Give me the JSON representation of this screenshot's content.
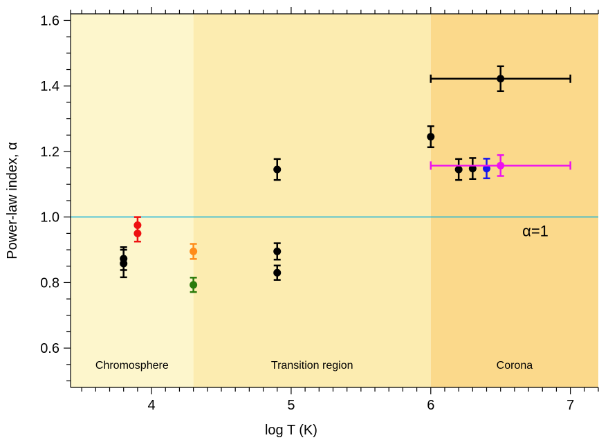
{
  "chart_data": {
    "type": "scatter",
    "title": "",
    "xlabel": "log T (K)",
    "ylabel": "Power-law index, α",
    "xlim": [
      3.42,
      7.2
    ],
    "ylim": [
      0.48,
      1.62
    ],
    "xticks": [
      4,
      5,
      6,
      7
    ],
    "xtick_labels": [
      "4",
      "5",
      "6",
      "7"
    ],
    "yticks": [
      0.6,
      0.8,
      1.0,
      1.2,
      1.4,
      1.6
    ],
    "ytick_labels": [
      "0.6",
      "0.8",
      "1.0",
      "1.2",
      "1.4",
      "1.6"
    ],
    "grid": false,
    "regions": [
      {
        "label": "Chromosphere",
        "x_start": 3.42,
        "x_end": 4.3,
        "color": "#fdf6cc"
      },
      {
        "label": "Transition region",
        "x_start": 4.3,
        "x_end": 6.0,
        "color": "#fcecb0"
      },
      {
        "label": "Corona",
        "x_start": 6.0,
        "x_end": 7.2,
        "color": "#fbd98b"
      }
    ],
    "reference_line": {
      "y": 1.0,
      "label": "α=1",
      "color": "#1fb5d6"
    },
    "points": [
      {
        "x": 3.8,
        "y": 0.873,
        "yerr": 0.035,
        "xerr": 0,
        "color": "#000000"
      },
      {
        "x": 3.8,
        "y": 0.858,
        "yerr": 0.042,
        "xerr": 0,
        "color": "#000000"
      },
      {
        "x": 3.9,
        "y": 0.975,
        "yerr": 0.025,
        "xerr": 0,
        "color": "#ee1111"
      },
      {
        "x": 3.9,
        "y": 0.95,
        "yerr": 0.025,
        "xerr": 0,
        "color": "#ee1111"
      },
      {
        "x": 4.3,
        "y": 0.895,
        "yerr": 0.023,
        "xerr": 0,
        "color": "#ff8c1a"
      },
      {
        "x": 4.3,
        "y": 0.793,
        "yerr": 0.022,
        "xerr": 0,
        "color": "#2a7a0a"
      },
      {
        "x": 4.9,
        "y": 1.145,
        "yerr": 0.032,
        "xerr": 0,
        "color": "#000000"
      },
      {
        "x": 4.9,
        "y": 0.895,
        "yerr": 0.025,
        "xerr": 0,
        "color": "#000000"
      },
      {
        "x": 4.9,
        "y": 0.83,
        "yerr": 0.022,
        "xerr": 0,
        "color": "#000000"
      },
      {
        "x": 6.0,
        "y": 1.245,
        "yerr": 0.032,
        "xerr": 0,
        "color": "#000000"
      },
      {
        "x": 6.2,
        "y": 1.145,
        "yerr": 0.032,
        "xerr": 0,
        "color": "#000000"
      },
      {
        "x": 6.3,
        "y": 1.148,
        "yerr": 0.032,
        "xerr": 0,
        "color": "#000000"
      },
      {
        "x": 6.4,
        "y": 1.148,
        "yerr": 0.03,
        "xerr": 0,
        "color": "#1515ee"
      },
      {
        "x": 6.5,
        "y": 1.157,
        "yerr": 0.032,
        "xerr": 0.5,
        "color": "#ee11ee"
      },
      {
        "x": 6.5,
        "y": 1.422,
        "yerr": 0.038,
        "xerr": 0.5,
        "color": "#000000"
      }
    ]
  }
}
